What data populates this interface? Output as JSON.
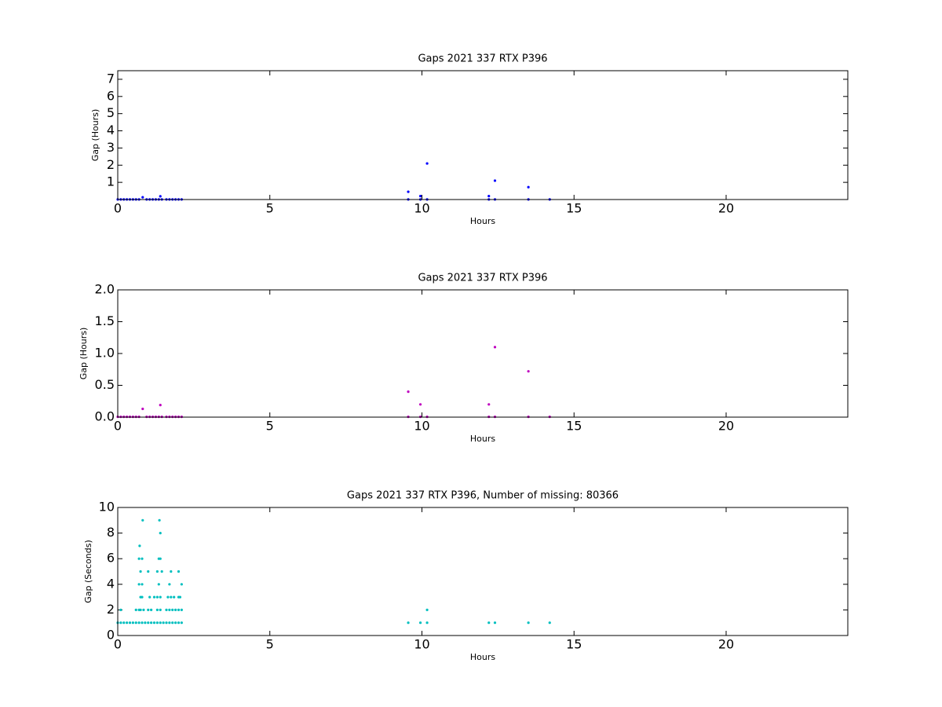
{
  "chart_data": [
    {
      "type": "scatter",
      "title": "Gaps 2021 337 RTX  P396",
      "xlabel": "Hours",
      "ylabel": "Gap (Hours)",
      "color": "#0000ff",
      "xlim": [
        0,
        24
      ],
      "xticks": [
        0,
        5,
        10,
        15,
        20
      ],
      "ylim": [
        0,
        7.5
      ],
      "yticks": [
        1,
        2,
        3,
        4,
        5,
        6,
        7
      ],
      "x": [
        0,
        0.1,
        0.2,
        0.3,
        0.4,
        0.5,
        0.6,
        0.7,
        0.82,
        0.95,
        1.05,
        1.15,
        1.25,
        1.35,
        1.45,
        1.4,
        1.6,
        1.7,
        1.8,
        1.9,
        2.0,
        2.1,
        9.55,
        9.55,
        9.95,
        9.95,
        10.17,
        10.17,
        12.2,
        12.2,
        12.4,
        12.4,
        13.5,
        13.5,
        14.2
      ],
      "values": [
        0.005,
        0.005,
        0.005,
        0.005,
        0.005,
        0.005,
        0.005,
        0.005,
        0.13,
        0.005,
        0.005,
        0.005,
        0.005,
        0.005,
        0.005,
        0.19,
        0.005,
        0.005,
        0.005,
        0.005,
        0.005,
        0.005,
        0.45,
        0.005,
        0.2,
        0.005,
        2.1,
        0.005,
        0.2,
        0.005,
        1.1,
        0.005,
        0.72,
        0.005,
        0.005
      ]
    },
    {
      "type": "scatter",
      "title": "Gaps 2021 337 RTX  P396",
      "xlabel": "Hours",
      "ylabel": "Gap (Hours)",
      "color": "#bf00bf",
      "xlim": [
        0,
        24
      ],
      "xticks": [
        0,
        5,
        10,
        15,
        20
      ],
      "ylim": [
        0,
        2
      ],
      "yticks": [
        {
          "value": 0,
          "label": "0.0"
        },
        0.5,
        {
          "value": 1,
          "label": "1.0"
        },
        1.5,
        {
          "value": 2,
          "label": "2.0"
        }
      ],
      "x": [
        0,
        0.1,
        0.2,
        0.3,
        0.4,
        0.5,
        0.6,
        0.7,
        0.82,
        0.95,
        1.05,
        1.15,
        1.25,
        1.35,
        1.45,
        1.4,
        1.6,
        1.7,
        1.8,
        1.9,
        2.0,
        2.1,
        9.55,
        9.55,
        9.95,
        9.95,
        10.17,
        12.2,
        12.2,
        12.4,
        12.4,
        13.5,
        13.5,
        14.2
      ],
      "values": [
        0.005,
        0.005,
        0.005,
        0.005,
        0.005,
        0.005,
        0.005,
        0.005,
        0.13,
        0.005,
        0.005,
        0.005,
        0.005,
        0.005,
        0.005,
        0.19,
        0.005,
        0.005,
        0.005,
        0.005,
        0.005,
        0.005,
        0.4,
        0.005,
        0.2,
        0.005,
        0.005,
        0.2,
        0.005,
        1.1,
        0.005,
        0.72,
        0.005,
        0.005
      ]
    },
    {
      "type": "scatter",
      "title": "Gaps 2021 337 RTX  P396, Number of missing: 80366",
      "xlabel": "Hours",
      "ylabel": "Gap (Seconds)",
      "color": "#00bfbf",
      "xlim": [
        0,
        24
      ],
      "xticks": [
        0,
        5,
        10,
        15,
        20
      ],
      "ylim": [
        0,
        10
      ],
      "yticks": [
        0,
        2,
        4,
        6,
        8,
        10
      ],
      "x": [
        0,
        0.1,
        0.2,
        0.3,
        0.4,
        0.5,
        0.6,
        0.7,
        0.8,
        0.9,
        1.0,
        1.1,
        1.2,
        1.3,
        1.4,
        1.5,
        1.6,
        1.7,
        1.8,
        1.9,
        2.0,
        2.1,
        9.55,
        9.95,
        10.17,
        12.2,
        12.4,
        13.5,
        14.2,
        0.1,
        0.6,
        0.7,
        0.75,
        0.85,
        1.0,
        1.1,
        1.3,
        1.4,
        1.6,
        1.7,
        1.8,
        1.9,
        2.0,
        2.1,
        10.17,
        0.75,
        0.8,
        1.05,
        1.2,
        1.3,
        1.4,
        1.65,
        1.75,
        1.85,
        2.0,
        2.05,
        0.7,
        0.8,
        1.35,
        1.7,
        2.1,
        0.75,
        1.0,
        1.3,
        1.45,
        1.75,
        2.0,
        0.7,
        0.8,
        1.35,
        1.4,
        0.72,
        1.4,
        0.82,
        1.37
      ],
      "values": [
        1,
        1,
        1,
        1,
        1,
        1,
        1,
        1,
        1,
        1,
        1,
        1,
        1,
        1,
        1,
        1,
        1,
        1,
        1,
        1,
        1,
        1,
        1,
        1,
        1,
        1,
        1,
        1,
        1,
        2,
        2,
        2,
        2,
        2,
        2,
        2,
        2,
        2,
        2,
        2,
        2,
        2,
        2,
        2,
        2,
        3,
        3,
        3,
        3,
        3,
        3,
        3,
        3,
        3,
        3,
        3,
        4,
        4,
        4,
        4,
        4,
        5,
        5,
        5,
        5,
        5,
        5,
        6,
        6,
        6,
        6,
        7,
        8,
        9,
        9
      ]
    }
  ]
}
